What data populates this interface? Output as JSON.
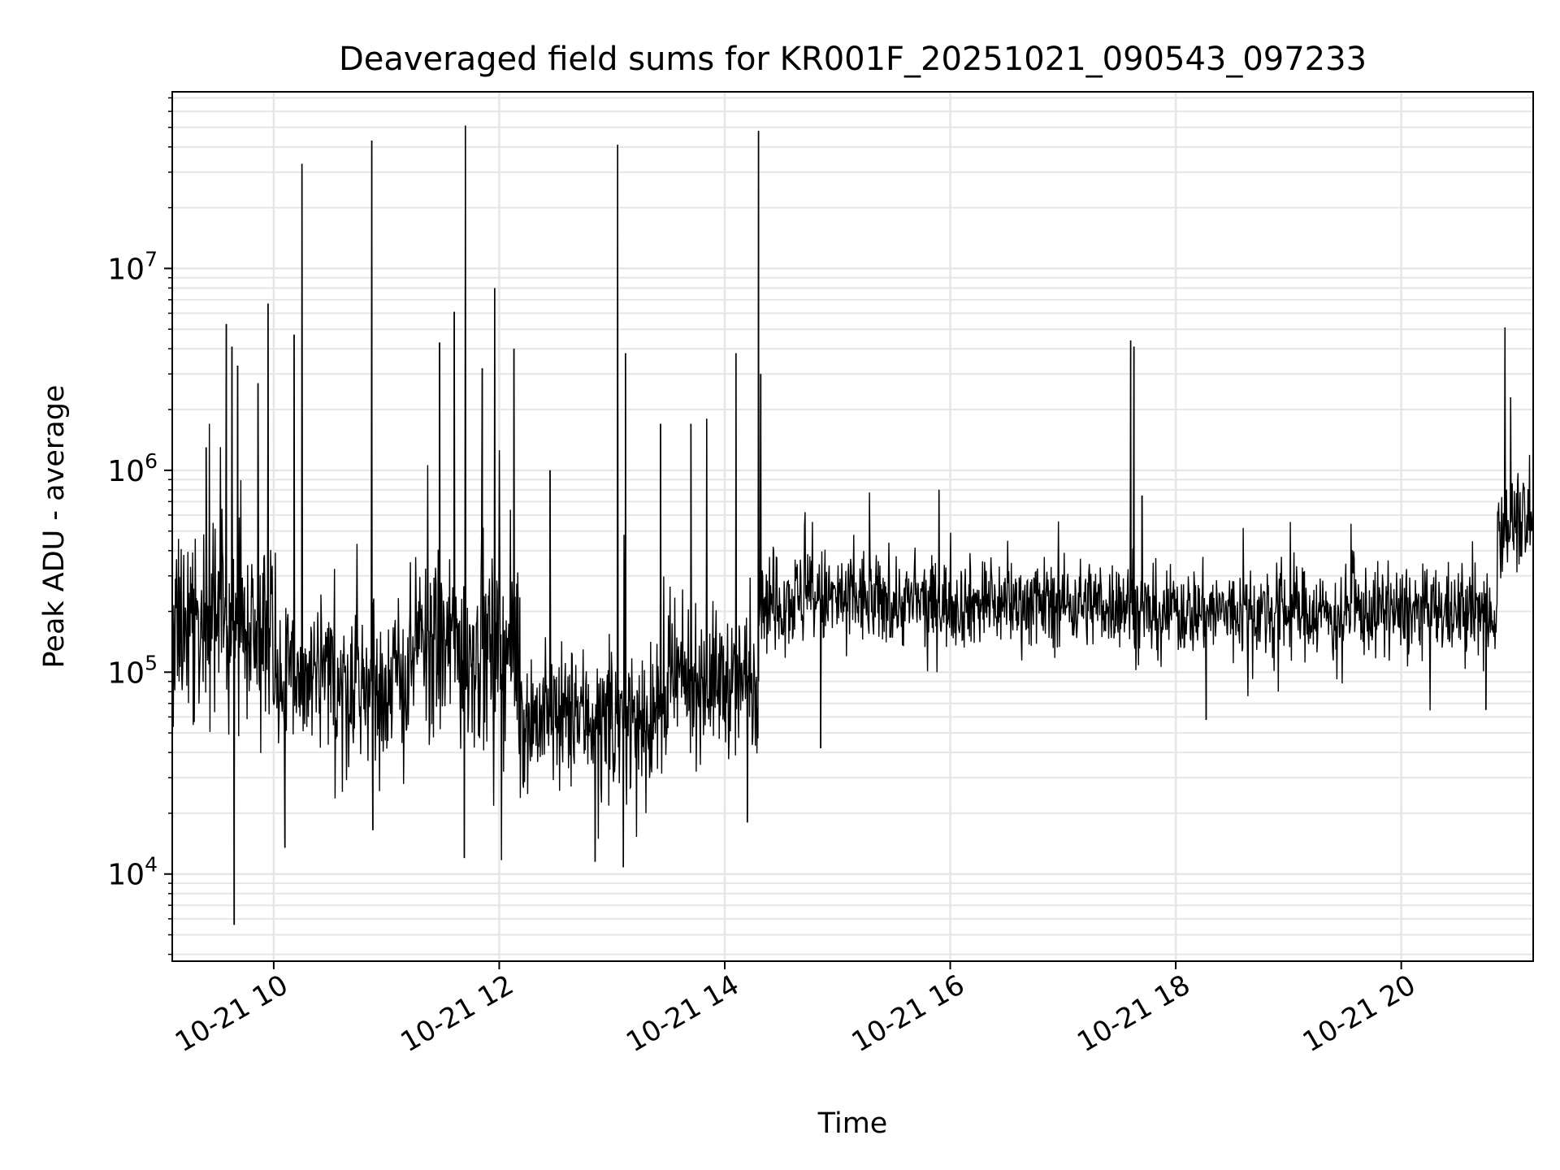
{
  "chart_data": {
    "type": "line",
    "title": "Deaveraged field sums for KR001F_20251021_090543_097233",
    "xlabel": "Time",
    "ylabel": "Peak ADU - average",
    "x_unit": "hours (2025-10-21)",
    "xlim": [
      9.1,
      21.17
    ],
    "ylim": [
      3700,
      75000000
    ],
    "yscale": "log",
    "grid": true,
    "x_ticks": [
      {
        "value": 10,
        "label": "10-21 10"
      },
      {
        "value": 12,
        "label": "10-21 12"
      },
      {
        "value": 14,
        "label": "10-21 14"
      },
      {
        "value": 16,
        "label": "10-21 16"
      },
      {
        "value": 18,
        "label": "10-21 18"
      },
      {
        "value": 20,
        "label": "10-21 20"
      }
    ],
    "y_ticks": [
      {
        "value": 10000,
        "base": "10",
        "exp": "4"
      },
      {
        "value": 100000,
        "base": "10",
        "exp": "5"
      },
      {
        "value": 1000000,
        "base": "10",
        "exp": "6"
      },
      {
        "value": 10000000,
        "base": "10",
        "exp": "7"
      }
    ],
    "line_color": "#000000",
    "grid_color": "#e6e6e6",
    "segments": [
      {
        "start": 9.1,
        "end": 10.0,
        "median": 180000,
        "spread": 0.45
      },
      {
        "start": 10.0,
        "end": 11.2,
        "median": 90000,
        "spread": 0.4
      },
      {
        "start": 11.2,
        "end": 12.2,
        "median": 130000,
        "spread": 0.5
      },
      {
        "start": 12.2,
        "end": 13.5,
        "median": 60000,
        "spread": 0.35
      },
      {
        "start": 13.5,
        "end": 14.3,
        "median": 90000,
        "spread": 0.35
      },
      {
        "start": 14.3,
        "end": 15.3,
        "median": 230000,
        "spread": 0.25
      },
      {
        "start": 15.3,
        "end": 17.6,
        "median": 220000,
        "spread": 0.22
      },
      {
        "start": 17.6,
        "end": 20.85,
        "median": 200000,
        "spread": 0.22
      },
      {
        "start": 20.85,
        "end": 21.17,
        "median": 550000,
        "spread": 0.22
      }
    ],
    "peaks": [
      {
        "x": 9.4,
        "y": 1300000
      },
      {
        "x": 9.58,
        "y": 5300000
      },
      {
        "x": 9.63,
        "y": 4100000
      },
      {
        "x": 9.65,
        "y": 5600
      },
      {
        "x": 9.68,
        "y": 3300000
      },
      {
        "x": 9.86,
        "y": 2700000
      },
      {
        "x": 9.95,
        "y": 6700000
      },
      {
        "x": 10.18,
        "y": 4700000
      },
      {
        "x": 10.25,
        "y": 33000000
      },
      {
        "x": 10.1,
        "y": 13500
      },
      {
        "x": 10.87,
        "y": 43000000
      },
      {
        "x": 10.88,
        "y": 16500
      },
      {
        "x": 11.47,
        "y": 4300000
      },
      {
        "x": 11.6,
        "y": 6100000
      },
      {
        "x": 11.7,
        "y": 51000000
      },
      {
        "x": 11.69,
        "y": 12000
      },
      {
        "x": 11.85,
        "y": 3200000
      },
      {
        "x": 11.96,
        "y": 8000000
      },
      {
        "x": 12.13,
        "y": 4000000
      },
      {
        "x": 12.45,
        "y": 1000000
      },
      {
        "x": 12.85,
        "y": 11500
      },
      {
        "x": 13.05,
        "y": 41000000
      },
      {
        "x": 13.1,
        "y": 10800
      },
      {
        "x": 13.12,
        "y": 3800000
      },
      {
        "x": 13.43,
        "y": 1700000
      },
      {
        "x": 13.7,
        "y": 1700000
      },
      {
        "x": 13.84,
        "y": 1800000
      },
      {
        "x": 14.1,
        "y": 3800000
      },
      {
        "x": 14.2,
        "y": 18000
      },
      {
        "x": 14.3,
        "y": 48000000
      },
      {
        "x": 14.32,
        "y": 3000000
      },
      {
        "x": 14.85,
        "y": 42000
      },
      {
        "x": 15.9,
        "y": 800000
      },
      {
        "x": 17.6,
        "y": 4400000
      },
      {
        "x": 17.63,
        "y": 4100000
      },
      {
        "x": 17.7,
        "y": 750000
      },
      {
        "x": 18.27,
        "y": 58000
      },
      {
        "x": 20.92,
        "y": 5100000
      },
      {
        "x": 20.97,
        "y": 2300000
      },
      {
        "x": 20.75,
        "y": 65000
      }
    ]
  }
}
